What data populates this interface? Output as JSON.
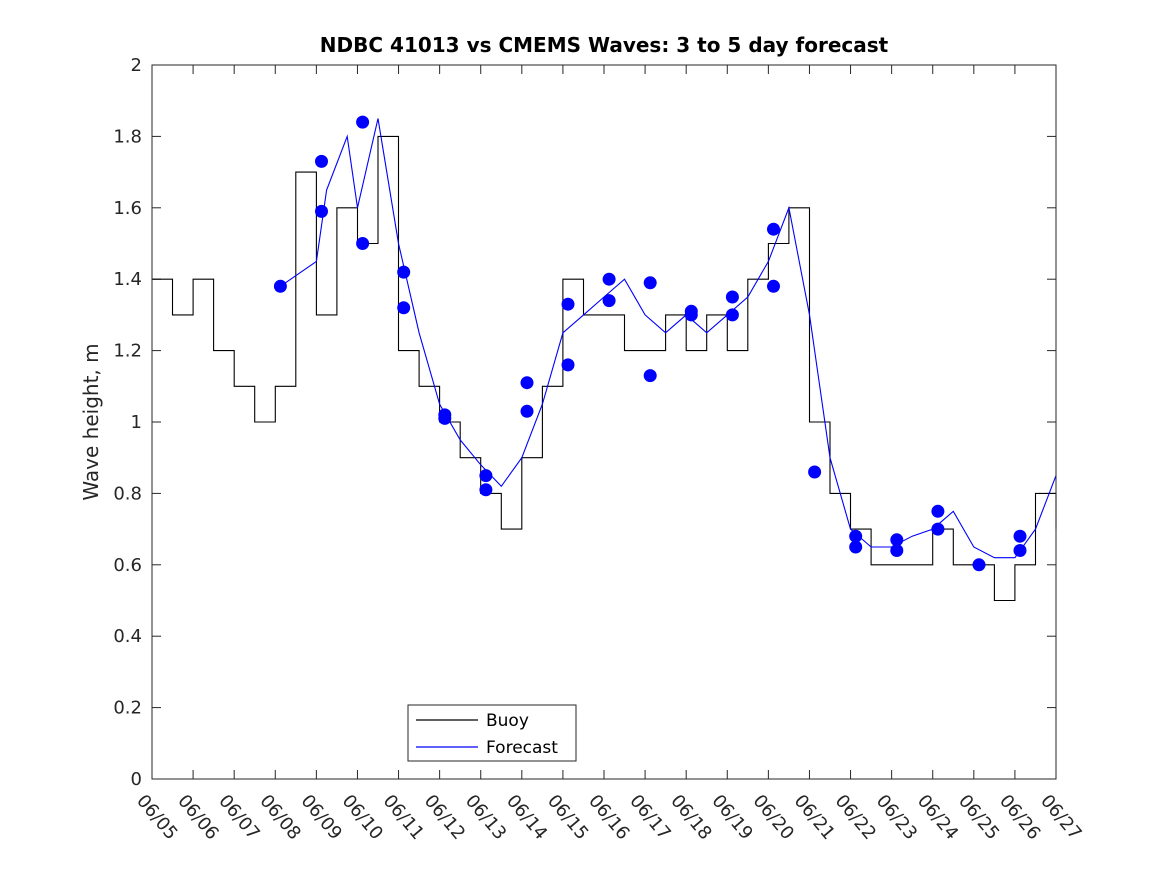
{
  "chart_data": {
    "type": "line",
    "title": "NDBC 41013 vs CMEMS Waves: 3 to 5 day forecast",
    "xlabel": "",
    "ylabel": "Wave height, m",
    "x_unit": "date (MM/DD)",
    "xlim": [
      "06/05",
      "06/27"
    ],
    "ylim": [
      0,
      2
    ],
    "x_ticks": [
      "06/05",
      "06/06",
      "06/07",
      "06/08",
      "06/09",
      "06/10",
      "06/11",
      "06/12",
      "06/13",
      "06/14",
      "06/15",
      "06/16",
      "06/17",
      "06/18",
      "06/19",
      "06/20",
      "06/21",
      "06/22",
      "06/23",
      "06/24",
      "06/25",
      "06/26",
      "06/27"
    ],
    "y_ticks": [
      "0",
      "0.2",
      "0.4",
      "0.6",
      "0.8",
      "1",
      "1.2",
      "1.4",
      "1.6",
      "1.8",
      "2"
    ],
    "legend": {
      "placement": "bottom-center",
      "entries": [
        "Buoy",
        "Forecast"
      ]
    },
    "grid": false,
    "colors": {
      "buoy": "#000000",
      "forecast": "#0000ff",
      "markers": "#0000ff",
      "axes": "#262626"
    },
    "series": [
      {
        "name": "Buoy",
        "x": [
          "06/05",
          "06/05 12:00",
          "06/06",
          "06/06 12:00",
          "06/07",
          "06/07 12:00",
          "06/08",
          "06/08 12:00",
          "06/09",
          "06/09 12:00",
          "06/10",
          "06/10 12:00",
          "06/11",
          "06/11 12:00",
          "06/12",
          "06/12 12:00",
          "06/13",
          "06/13 12:00",
          "06/14",
          "06/14 12:00",
          "06/15",
          "06/15 12:00",
          "06/16",
          "06/16 12:00",
          "06/17",
          "06/17 12:00",
          "06/18",
          "06/18 12:00",
          "06/19",
          "06/19 12:00",
          "06/20",
          "06/20 12:00",
          "06/21",
          "06/21 12:00",
          "06/22",
          "06/22 12:00",
          "06/23",
          "06/23 12:00",
          "06/24",
          "06/24 12:00",
          "06/25",
          "06/25 12:00",
          "06/26",
          "06/26 12:00",
          "06/27"
        ],
        "y": [
          1.4,
          1.3,
          1.4,
          1.2,
          1.1,
          1.0,
          1.1,
          1.7,
          1.3,
          1.6,
          1.5,
          1.8,
          1.2,
          1.1,
          1.0,
          0.9,
          0.8,
          0.7,
          0.9,
          1.1,
          1.4,
          1.3,
          1.3,
          1.2,
          1.2,
          1.3,
          1.2,
          1.3,
          1.2,
          1.4,
          1.5,
          1.6,
          1.0,
          0.8,
          0.7,
          0.6,
          0.6,
          0.6,
          0.7,
          0.6,
          0.6,
          0.5,
          0.6,
          0.8,
          0.7
        ]
      },
      {
        "name": "Forecast",
        "x": [
          "06/08 03:00",
          "06/09",
          "06/09 06:00",
          "06/09 18:00",
          "06/10",
          "06/10 12:00",
          "06/11",
          "06/11 12:00",
          "06/12",
          "06/12 12:00",
          "06/13",
          "06/13 12:00",
          "06/14",
          "06/14 12:00",
          "06/15",
          "06/15 12:00",
          "06/16",
          "06/16 12:00",
          "06/17",
          "06/17 12:00",
          "06/18",
          "06/18 12:00",
          "06/19",
          "06/19 12:00",
          "06/20",
          "06/20 12:00",
          "06/21",
          "06/21 12:00",
          "06/22",
          "06/22 12:00",
          "06/23",
          "06/23 12:00",
          "06/24",
          "06/24 12:00",
          "06/25",
          "06/25 12:00",
          "06/26",
          "06/26 12:00",
          "06/27"
        ],
        "y": [
          1.38,
          1.45,
          1.65,
          1.8,
          1.6,
          1.85,
          1.5,
          1.25,
          1.05,
          0.95,
          0.88,
          0.82,
          0.9,
          1.05,
          1.25,
          1.3,
          1.35,
          1.4,
          1.3,
          1.25,
          1.3,
          1.25,
          1.3,
          1.35,
          1.45,
          1.6,
          1.3,
          0.9,
          0.7,
          0.65,
          0.65,
          0.68,
          0.7,
          0.75,
          0.65,
          0.62,
          0.62,
          0.7,
          0.85
        ]
      },
      {
        "name": "Forecast",
        "x": [
          "06/08 03:00",
          "06/09 03:00",
          "06/10 03:00",
          "06/11 03:00",
          "06/12 03:00",
          "06/13 03:00",
          "06/14 03:00",
          "06/15 03:00",
          "06/16 03:00",
          "06/17 03:00",
          "06/18 03:00",
          "06/19 03:00",
          "06/20 03:00",
          "06/21 03:00",
          "06/22 03:00",
          "06/23 03:00",
          "06/24 03:00",
          "06/25 03:00",
          "06/26 03:00"
        ],
        "y": [
          1.38,
          1.59,
          1.5,
          1.42,
          1.02,
          0.81,
          1.11,
          1.33,
          1.4,
          1.39,
          1.3,
          1.35,
          1.54,
          0.86,
          0.65,
          0.64,
          0.75,
          0.6,
          0.68
        ]
      },
      {
        "name": "Forecast",
        "x": [
          "06/09 03:00",
          "06/10 03:00",
          "06/11 03:00",
          "06/12 03:00",
          "06/13 03:00",
          "06/14 03:00",
          "06/15 03:00",
          "06/16 03:00",
          "06/17 03:00",
          "06/18 03:00",
          "06/19 03:00",
          "06/20 03:00",
          "06/22 03:00",
          "06/23 03:00",
          "06/24 03:00",
          "06/26 03:00"
        ],
        "y": [
          1.73,
          1.84,
          1.32,
          1.01,
          0.85,
          1.03,
          1.16,
          1.34,
          1.13,
          1.31,
          1.3,
          1.38,
          0.68,
          0.67,
          0.7,
          0.64
        ]
      }
    ]
  }
}
